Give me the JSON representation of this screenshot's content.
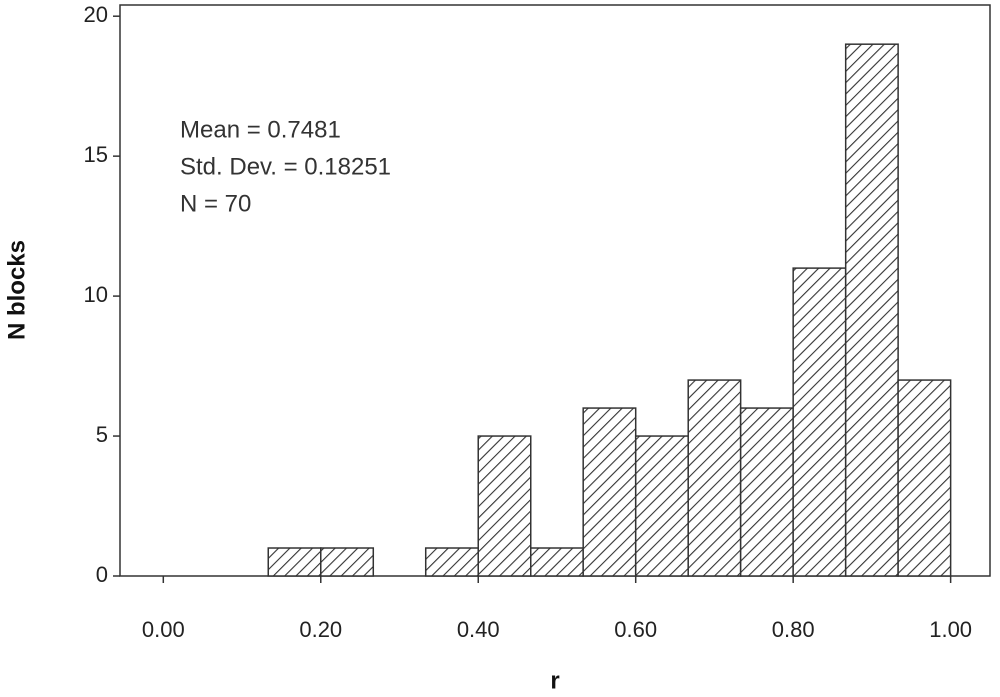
{
  "chart_data": {
    "type": "histogram",
    "bins": [
      0.1333,
      0.2,
      0.2667,
      0.3333,
      0.4,
      0.4667,
      0.5333,
      0.6,
      0.6667,
      0.7333,
      0.8,
      0.8667,
      0.9333,
      1.0
    ],
    "counts": [
      1,
      1,
      0,
      1,
      5,
      1,
      6,
      5,
      7,
      6,
      11,
      19,
      7
    ],
    "color": "#333333",
    "xlim": [
      -0.055,
      1.05
    ],
    "ylim": [
      0,
      20.4
    ],
    "xticks": [
      {
        "value": 0,
        "label": "0.00"
      },
      {
        "value": 0.2,
        "label": "0.20"
      },
      {
        "value": 0.4,
        "label": "0.40"
      },
      {
        "value": 0.6,
        "label": "0.60"
      },
      {
        "value": 0.8,
        "label": "0.80"
      },
      {
        "value": 1.0,
        "label": "1.00"
      }
    ],
    "yticks": [
      0,
      5,
      10,
      15,
      20
    ],
    "xlabel": "r",
    "ylabel": "N blocks",
    "annotations": [
      "Mean = 0.7481",
      "Std. Dev. = 0.18251",
      "N = 70"
    ]
  }
}
